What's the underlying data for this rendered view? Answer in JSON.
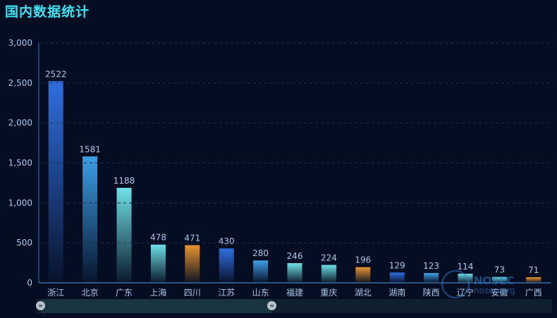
{
  "title": "国内数据统计",
  "chart_data": {
    "type": "bar",
    "categories": [
      "浙江",
      "北京",
      "广东",
      "上海",
      "四川",
      "江苏",
      "山东",
      "福建",
      "重庆",
      "湖北",
      "湖南",
      "陕西",
      "辽宁",
      "安徽",
      "广西"
    ],
    "values": [
      2522,
      1581,
      1188,
      478,
      471,
      430,
      280,
      246,
      224,
      196,
      129,
      123,
      114,
      73,
      71
    ],
    "ylim": [
      0,
      3000
    ],
    "yticks": [
      0,
      500,
      1000,
      1500,
      2000,
      2500,
      3000
    ],
    "ytick_labels": [
      "0",
      "500",
      "1,000",
      "1,500",
      "2,000",
      "2,500",
      "3,000"
    ],
    "grid": "dashed horizontal",
    "bar_colors": [
      "#2f6fe0",
      "#3b9fe6",
      "#6ee2e6",
      "#6ee2e6",
      "#e8952e",
      "#2f6fe0",
      "#3b9fe6",
      "#6ee2e6",
      "#6ee2e6",
      "#e8952e",
      "#2f6fe0",
      "#3b9fe6",
      "#6ee2e6",
      "#6ee2e6",
      "#e8952e"
    ],
    "label_color": "#a8c8e8",
    "axis_color": "#3a6ea0"
  },
  "watermark": {
    "brand": "NOSEC",
    "domain": "nosec.org"
  },
  "datazoom": {
    "handle_icon": "drag-handle-icon"
  }
}
